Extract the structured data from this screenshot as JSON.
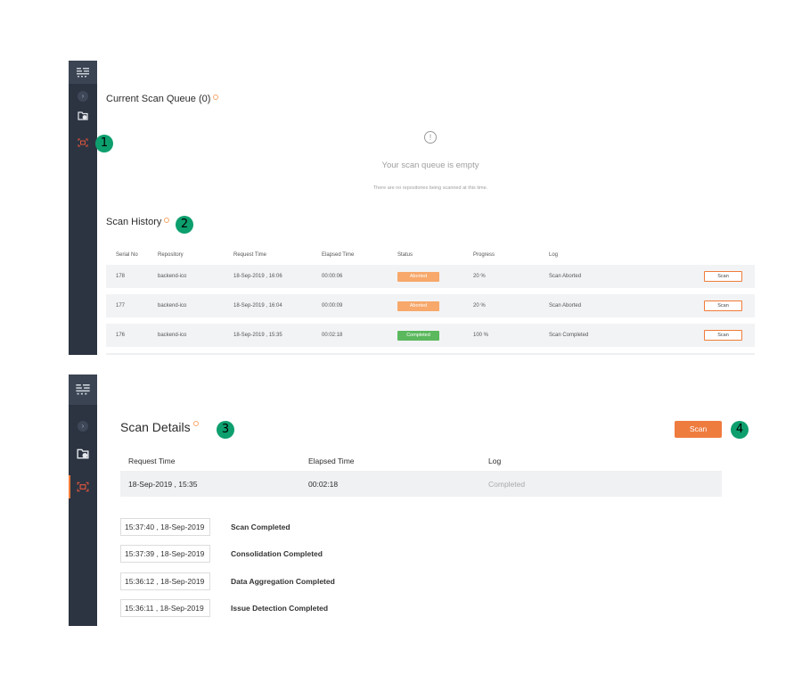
{
  "colors": {
    "sidebar": "#2c3442",
    "accent": "#ef7c3f",
    "marker": "#0d9f6e",
    "aborted": "#f7a86a",
    "completed": "#5bb85d"
  },
  "sidebar": {
    "logo_icon": "brand-logo-icon",
    "expand_icon": "chevron-right-icon",
    "repo_icon": "repository-folder-icon",
    "scan_icon": "scan-icon"
  },
  "markers": [
    "1",
    "2",
    "3",
    "4"
  ],
  "queue": {
    "title": "Current Scan Queue (0)",
    "empty_icon": "!",
    "empty_title": "Your scan queue is empty",
    "empty_subtitle": "There are no repositories being scanned at this time."
  },
  "history": {
    "title": "Scan History",
    "columns": [
      "Serial No",
      "Repository",
      "Request Time",
      "Elapsed Time",
      "Status",
      "Progress",
      "Log"
    ],
    "rows": [
      {
        "serial": "178",
        "repo": "backend-ico",
        "request": "18-Sep-2019 , 16:06",
        "elapsed": "00:00:06",
        "status": "Aborted",
        "progress": "20 %",
        "log": "Scan Aborted",
        "action": "Scan"
      },
      {
        "serial": "177",
        "repo": "backend-ico",
        "request": "18-Sep-2019 , 16:04",
        "elapsed": "00:00:09",
        "status": "Aborted",
        "progress": "20 %",
        "log": "Scan Aborted",
        "action": "Scan"
      },
      {
        "serial": "176",
        "repo": "backend-ico",
        "request": "18-Sep-2019 , 15:35",
        "elapsed": "00:02:18",
        "status": "Completed",
        "progress": "100 %",
        "log": "Scan Completed",
        "action": "Scan"
      }
    ]
  },
  "details": {
    "title": "Scan Details",
    "scan_button": "Scan",
    "columns": [
      "Request Time",
      "Elapsed Time",
      "Log"
    ],
    "row": {
      "request": "18-Sep-2019 , 15:35",
      "elapsed": "00:02:18",
      "log": "Completed"
    },
    "events": [
      {
        "time": "15:37:40 , 18-Sep-2019",
        "label": "Scan Completed"
      },
      {
        "time": "15:37:39 , 18-Sep-2019",
        "label": "Consolidation Completed"
      },
      {
        "time": "15:36:12 , 18-Sep-2019",
        "label": "Data Aggregation Completed"
      },
      {
        "time": "15:36:11 , 18-Sep-2019",
        "label": "Issue Detection Completed"
      }
    ]
  }
}
